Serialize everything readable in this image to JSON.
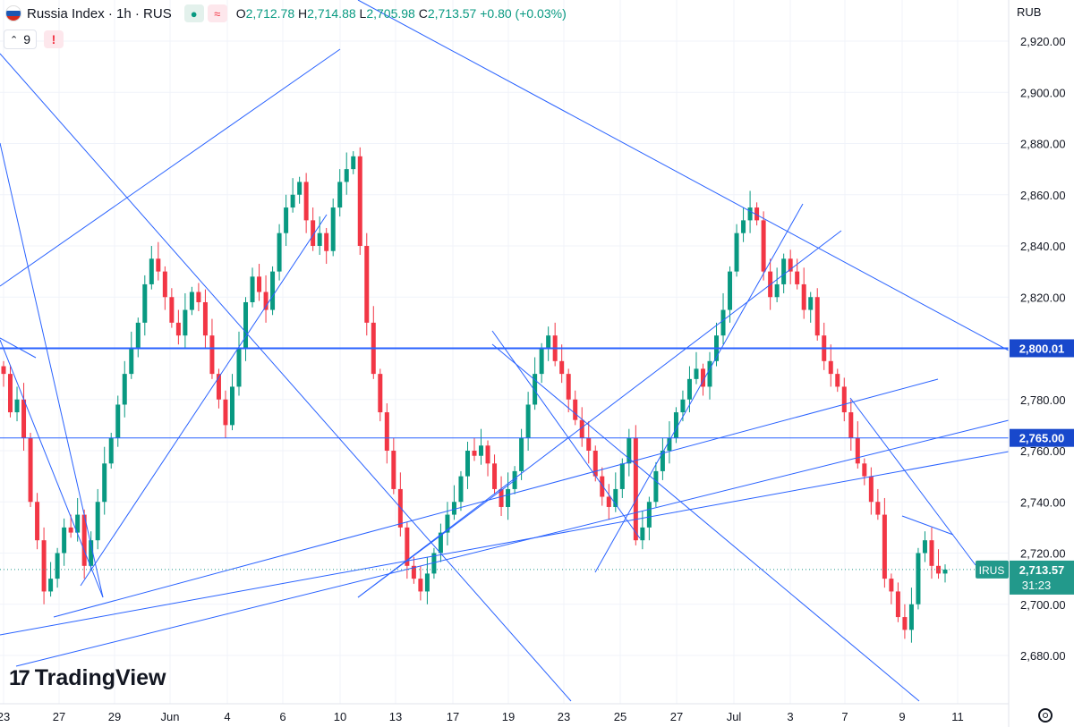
{
  "legend": {
    "symbol": "Russia Index · 1h · RUS",
    "flag_colors": [
      "#ffffff",
      "#1c57b3",
      "#d52b1e"
    ],
    "open_key": "O",
    "open": "2,712.78",
    "high_key": "H",
    "high": "2,714.88",
    "low_key": "L",
    "low": "2,705.98",
    "close_key": "C",
    "close": "2,713.57",
    "change": "+0.80 (+0.03%)",
    "dot_icon": "●",
    "wave_icon": "≈"
  },
  "indicators": {
    "count": "9",
    "chevron": "⌃",
    "alert": "!"
  },
  "currency": "RUB",
  "logo": {
    "mark": "17",
    "text": "TradingView"
  },
  "colors": {
    "up": "#089981",
    "down": "#f23645",
    "line": "#2962ff",
    "label_bg": "#1848cc",
    "price_bg": "#22998b",
    "grid": "#f0f3fa"
  },
  "chart_data": {
    "type": "candlestick",
    "y_ticks": [
      2680,
      2700,
      2720,
      2740,
      2760,
      2780,
      2800,
      2820,
      2840,
      2860,
      2880,
      2900,
      2920
    ],
    "y_tick_labels": [
      "2,680.00",
      "2,700.00",
      "2,720.00",
      "2,740.00",
      "2,760.00",
      "2,780.00",
      "2,800.00",
      "2,820.00",
      "2,840.00",
      "2,860.00",
      "2,880.00",
      "2,900.00",
      "2,920.00"
    ],
    "ylim": [
      2661,
      2947
    ],
    "x_labels": [
      "23",
      "27",
      "29",
      "Jun",
      "4",
      "6",
      "10",
      "13",
      "17",
      "19",
      "23",
      "25",
      "27",
      "Jul",
      "3",
      "7",
      "9",
      "11"
    ],
    "horizontal_lines": [
      {
        "price": 2800.01,
        "label": "2,800.01"
      },
      {
        "price": 2765.0,
        "label": "2,765.00"
      }
    ],
    "last_price": {
      "tag": "IRUS",
      "value": "2,713.57",
      "countdown": "31:23",
      "price": 2713.57
    },
    "closes": [
      2790,
      2775,
      2780,
      2765,
      2740,
      2725,
      2705,
      2710,
      2720,
      2730,
      2728,
      2735,
      2715,
      2725,
      2740,
      2755,
      2765,
      2778,
      2790,
      2800,
      2810,
      2825,
      2835,
      2830,
      2820,
      2810,
      2805,
      2815,
      2822,
      2818,
      2805,
      2790,
      2780,
      2770,
      2785,
      2800,
      2818,
      2828,
      2822,
      2815,
      2830,
      2845,
      2855,
      2860,
      2865,
      2850,
      2840,
      2845,
      2838,
      2855,
      2865,
      2870,
      2875,
      2840,
      2810,
      2790,
      2775,
      2760,
      2745,
      2730,
      2715,
      2710,
      2705,
      2712,
      2720,
      2728,
      2735,
      2740,
      2750,
      2760,
      2758,
      2762,
      2755,
      2745,
      2738,
      2745,
      2752,
      2765,
      2778,
      2790,
      2800,
      2805,
      2795,
      2790,
      2780,
      2772,
      2765,
      2760,
      2750,
      2742,
      2738,
      2745,
      2755,
      2765,
      2725,
      2730,
      2740,
      2752,
      2760,
      2765,
      2775,
      2780,
      2788,
      2792,
      2785,
      2795,
      2805,
      2815,
      2830,
      2845,
      2850,
      2855,
      2850,
      2830,
      2820,
      2825,
      2835,
      2830,
      2825,
      2815,
      2820,
      2805,
      2795,
      2790,
      2785,
      2775,
      2765,
      2755,
      2750,
      2740,
      2735,
      2710,
      2705,
      2695,
      2690,
      2700,
      2720,
      2725,
      2715,
      2712,
      2713.57
    ]
  }
}
